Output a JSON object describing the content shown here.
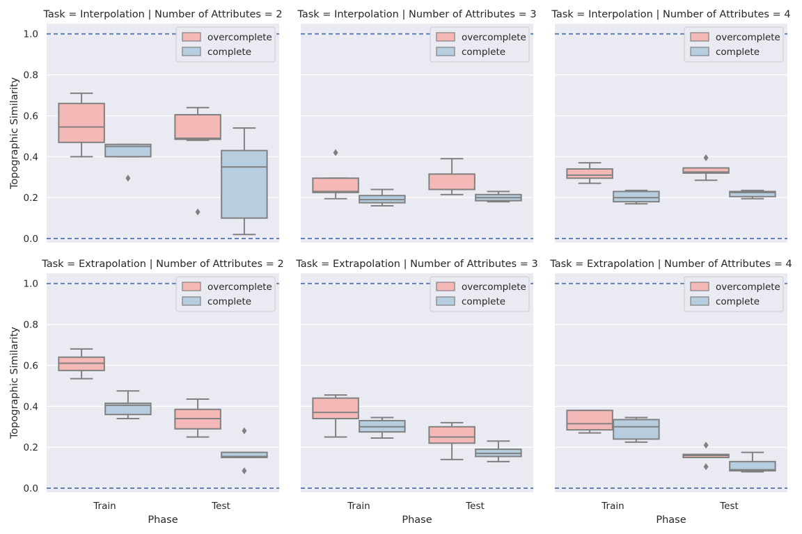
{
  "chart_data": {
    "type": "boxplot",
    "layout": "2x3 facet grid",
    "ylabel": "Topographic Similarity",
    "xlabel": "Phase",
    "categories": [
      "Train",
      "Test"
    ],
    "ylim": [
      -0.02,
      1.05
    ],
    "yticks": [
      "0.0",
      "0.2",
      "0.4",
      "0.6",
      "0.8",
      "1.0"
    ],
    "reference_lines": [
      0.0,
      1.0
    ],
    "legend_position": "top-right",
    "series_names": [
      "overcomplete",
      "complete"
    ],
    "colors": {
      "overcomplete": "#f4b9b6",
      "complete": "#b7cde0",
      "box_edge": "#808080",
      "reference_line": "#4c72b0",
      "panel_bg": "#eaeaf2",
      "grid": "#ffffff"
    },
    "panels": [
      {
        "title": "Task = Interpolation | Number of Attributes = 2",
        "series": [
          {
            "name": "overcomplete",
            "boxes": [
              {
                "category": "Train",
                "whislo": 0.4,
                "q1": 0.47,
                "med": 0.545,
                "q3": 0.66,
                "whishi": 0.71,
                "fliers": []
              },
              {
                "category": "Test",
                "whislo": 0.48,
                "q1": 0.485,
                "med": 0.49,
                "q3": 0.605,
                "whishi": 0.64,
                "fliers": [
                  0.13
                ]
              }
            ]
          },
          {
            "name": "complete",
            "boxes": [
              {
                "category": "Train",
                "whislo": 0.4,
                "q1": 0.4,
                "med": 0.45,
                "q3": 0.46,
                "whishi": 0.46,
                "fliers": [
                  0.295
                ]
              },
              {
                "category": "Test",
                "whislo": 0.02,
                "q1": 0.1,
                "med": 0.35,
                "q3": 0.43,
                "whishi": 0.54,
                "fliers": []
              }
            ]
          }
        ]
      },
      {
        "title": "Task = Interpolation | Number of Attributes = 3",
        "series": [
          {
            "name": "overcomplete",
            "boxes": [
              {
                "category": "Train",
                "whislo": 0.195,
                "q1": 0.225,
                "med": 0.23,
                "q3": 0.295,
                "whishi": 0.295,
                "fliers": [
                  0.42
                ]
              },
              {
                "category": "Test",
                "whislo": 0.215,
                "q1": 0.24,
                "med": 0.24,
                "q3": 0.315,
                "whishi": 0.39,
                "fliers": []
              }
            ]
          },
          {
            "name": "complete",
            "boxes": [
              {
                "category": "Train",
                "whislo": 0.16,
                "q1": 0.175,
                "med": 0.19,
                "q3": 0.21,
                "whishi": 0.24,
                "fliers": []
              },
              {
                "category": "Test",
                "whislo": 0.18,
                "q1": 0.185,
                "med": 0.2,
                "q3": 0.215,
                "whishi": 0.23,
                "fliers": []
              }
            ]
          }
        ]
      },
      {
        "title": "Task = Interpolation | Number of Attributes = 4",
        "series": [
          {
            "name": "overcomplete",
            "boxes": [
              {
                "category": "Train",
                "whislo": 0.27,
                "q1": 0.295,
                "med": 0.31,
                "q3": 0.34,
                "whishi": 0.37,
                "fliers": []
              },
              {
                "category": "Test",
                "whislo": 0.285,
                "q1": 0.32,
                "med": 0.325,
                "q3": 0.345,
                "whishi": 0.345,
                "fliers": [
                  0.395
                ]
              }
            ]
          },
          {
            "name": "complete",
            "boxes": [
              {
                "category": "Train",
                "whislo": 0.17,
                "q1": 0.18,
                "med": 0.2,
                "q3": 0.23,
                "whishi": 0.235,
                "fliers": []
              },
              {
                "category": "Test",
                "whislo": 0.195,
                "q1": 0.205,
                "med": 0.225,
                "q3": 0.23,
                "whishi": 0.235,
                "fliers": []
              }
            ]
          }
        ]
      },
      {
        "title": "Task = Extrapolation | Number of Attributes = 2",
        "series": [
          {
            "name": "overcomplete",
            "boxes": [
              {
                "category": "Train",
                "whislo": 0.535,
                "q1": 0.575,
                "med": 0.61,
                "q3": 0.64,
                "whishi": 0.68,
                "fliers": []
              },
              {
                "category": "Test",
                "whislo": 0.25,
                "q1": 0.29,
                "med": 0.34,
                "q3": 0.385,
                "whishi": 0.435,
                "fliers": []
              }
            ]
          },
          {
            "name": "complete",
            "boxes": [
              {
                "category": "Train",
                "whislo": 0.34,
                "q1": 0.36,
                "med": 0.405,
                "q3": 0.415,
                "whishi": 0.475,
                "fliers": []
              },
              {
                "category": "Test",
                "whislo": 0.15,
                "q1": 0.15,
                "med": 0.155,
                "q3": 0.175,
                "whishi": 0.175,
                "fliers": [
                  0.28,
                  0.085
                ]
              }
            ]
          }
        ]
      },
      {
        "title": "Task = Extrapolation | Number of Attributes = 3",
        "series": [
          {
            "name": "overcomplete",
            "boxes": [
              {
                "category": "Train",
                "whislo": 0.25,
                "q1": 0.34,
                "med": 0.37,
                "q3": 0.44,
                "whishi": 0.455,
                "fliers": []
              },
              {
                "category": "Test",
                "whislo": 0.14,
                "q1": 0.22,
                "med": 0.25,
                "q3": 0.3,
                "whishi": 0.32,
                "fliers": []
              }
            ]
          },
          {
            "name": "complete",
            "boxes": [
              {
                "category": "Train",
                "whislo": 0.245,
                "q1": 0.275,
                "med": 0.3,
                "q3": 0.33,
                "whishi": 0.345,
                "fliers": []
              },
              {
                "category": "Test",
                "whislo": 0.13,
                "q1": 0.155,
                "med": 0.17,
                "q3": 0.19,
                "whishi": 0.23,
                "fliers": []
              }
            ]
          }
        ]
      },
      {
        "title": "Task = Extrapolation | Number of Attributes = 4",
        "series": [
          {
            "name": "overcomplete",
            "boxes": [
              {
                "category": "Train",
                "whislo": 0.27,
                "q1": 0.285,
                "med": 0.315,
                "q3": 0.38,
                "whishi": 0.38,
                "fliers": []
              },
              {
                "category": "Test",
                "whislo": 0.15,
                "q1": 0.15,
                "med": 0.16,
                "q3": 0.165,
                "whishi": 0.165,
                "fliers": [
                  0.21,
                  0.105
                ]
              }
            ]
          },
          {
            "name": "complete",
            "boxes": [
              {
                "category": "Train",
                "whislo": 0.225,
                "q1": 0.24,
                "med": 0.3,
                "q3": 0.335,
                "whishi": 0.345,
                "fliers": []
              },
              {
                "category": "Test",
                "whislo": 0.08,
                "q1": 0.085,
                "med": 0.09,
                "q3": 0.13,
                "whishi": 0.175,
                "fliers": []
              }
            ]
          }
        ]
      }
    ]
  }
}
